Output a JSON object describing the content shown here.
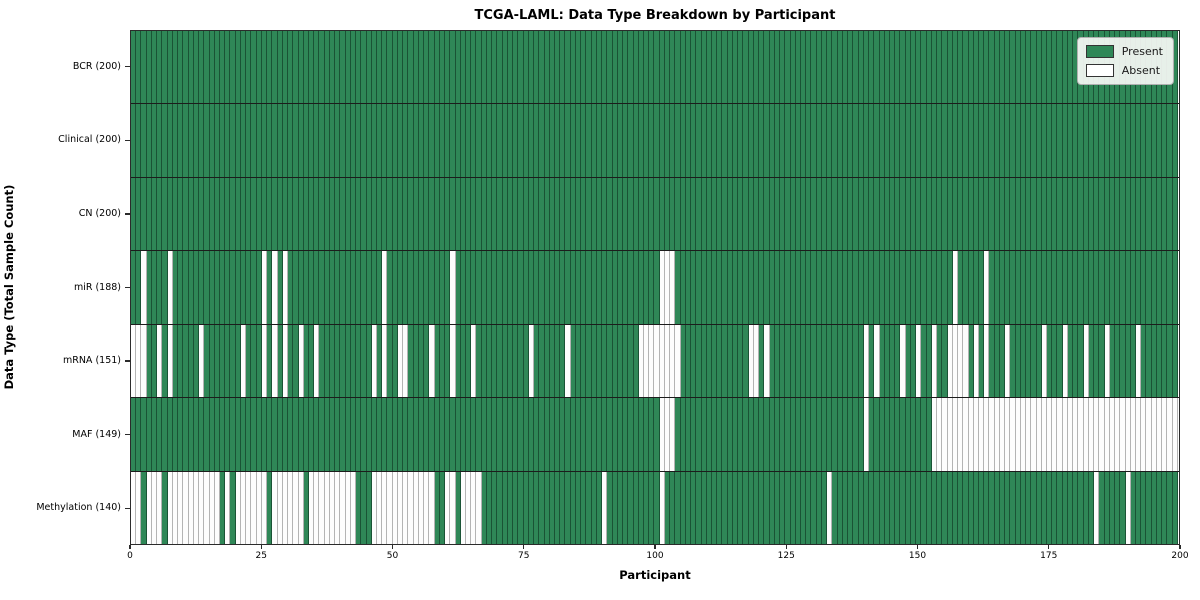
{
  "title": "TCGA-LAML: Data Type Breakdown by Participant",
  "xlabel": "Participant",
  "ylabel": "Data Type (Total Sample Count)",
  "legend": {
    "present_label": "Present",
    "absent_label": "Absent"
  },
  "colors": {
    "present": "#2F8757",
    "absent": "#FDFDFD",
    "cell_edge_present": "#1B4D33",
    "cell_edge_absent": "#B4B4B4",
    "row_separator": "#1C1C1C",
    "spine": "#2B2B2B"
  },
  "x_ticks": [
    0,
    25,
    50,
    75,
    100,
    125,
    150,
    175,
    200
  ],
  "chart_data": {
    "type": "heatmap",
    "x_axis": "participant index",
    "n_participants": 200,
    "x_range": [
      0,
      200
    ],
    "legend_position": "upper right",
    "rows": [
      {
        "name": "BCR",
        "label": "BCR (200)",
        "total": 200,
        "absent": []
      },
      {
        "name": "Clinical",
        "label": "Clinical (200)",
        "total": 200,
        "absent": []
      },
      {
        "name": "CN",
        "label": "CN (200)",
        "total": 200,
        "absent": []
      },
      {
        "name": "miR",
        "label": "miR (188)",
        "total": 188,
        "absent": [
          2,
          7,
          25,
          27,
          29,
          48,
          61,
          101,
          102,
          103,
          157,
          163
        ]
      },
      {
        "name": "mRNA",
        "label": "mRNA (151)",
        "total": 151,
        "absent": [
          0,
          1,
          2,
          5,
          7,
          13,
          21,
          25,
          27,
          29,
          32,
          35,
          46,
          48,
          51,
          52,
          57,
          61,
          65,
          76,
          83,
          97,
          98,
          99,
          100,
          101,
          102,
          103,
          104,
          118,
          119,
          121,
          140,
          142,
          147,
          150,
          153,
          156,
          157,
          158,
          159,
          161,
          163,
          167,
          174,
          178,
          182,
          186,
          192
        ]
      },
      {
        "name": "MAF",
        "label": "MAF (149)",
        "total": 149,
        "absent": [
          101,
          102,
          103,
          140,
          153,
          154,
          155,
          156,
          157,
          158,
          159,
          160,
          161,
          162,
          163,
          164,
          165,
          166,
          167,
          168,
          169,
          170,
          171,
          172,
          173,
          174,
          175,
          176,
          177,
          178,
          179,
          180,
          181,
          182,
          183,
          184,
          185,
          186,
          187,
          188,
          189,
          190,
          191,
          192,
          193,
          194,
          195,
          196,
          197,
          198,
          199
        ]
      },
      {
        "name": "Methylation",
        "label": "Methylation (140)",
        "total": 140,
        "absent": [
          0,
          1,
          3,
          4,
          5,
          7,
          8,
          9,
          10,
          11,
          12,
          13,
          14,
          15,
          16,
          18,
          20,
          21,
          22,
          23,
          24,
          25,
          27,
          28,
          29,
          30,
          31,
          32,
          34,
          35,
          36,
          37,
          38,
          39,
          40,
          41,
          42,
          46,
          47,
          48,
          49,
          50,
          51,
          52,
          53,
          54,
          55,
          56,
          57,
          60,
          61,
          63,
          64,
          65,
          66,
          90,
          101,
          133,
          184,
          190
        ]
      }
    ]
  }
}
